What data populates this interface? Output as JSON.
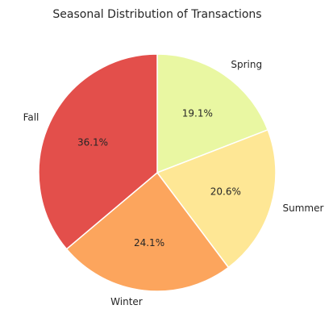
{
  "chart_data": {
    "type": "pie",
    "title": "Seasonal Distribution of Transactions",
    "slices": [
      {
        "label": "Spring",
        "value": 19.1,
        "pct_label": "19.1%",
        "color": "#e9f7a2"
      },
      {
        "label": "Summer",
        "value": 20.6,
        "pct_label": "20.6%",
        "color": "#fee795"
      },
      {
        "label": "Winter",
        "value": 24.1,
        "pct_label": "24.1%",
        "color": "#fca55d"
      },
      {
        "label": "Fall",
        "value": 36.1,
        "pct_label": "36.1%",
        "color": "#e34f4b"
      }
    ],
    "start_angle_deg": 90,
    "direction": "clockwise",
    "edge_color": "#ffffff"
  }
}
